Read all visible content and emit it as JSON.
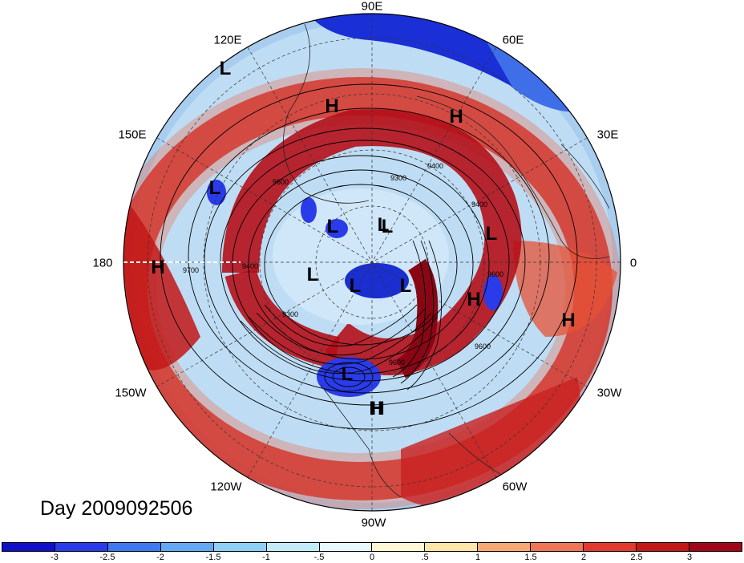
{
  "title": "Day 2009092506",
  "longitude_labels": [
    "90E",
    "60E",
    "30E",
    "0",
    "30W",
    "60W",
    "90W",
    "120W",
    "150W",
    "180",
    "150E",
    "120E"
  ],
  "pressure_centers": [
    "H",
    "L",
    "H",
    "H",
    "L",
    "L",
    "L",
    "L",
    "L",
    "L",
    "L",
    "L",
    "H",
    "H",
    "H",
    "L",
    "H"
  ],
  "contour_labels": [
    "9300",
    "9400",
    "9600",
    "9300",
    "9400",
    "9600",
    "9600",
    "9400",
    "9600",
    "9700"
  ],
  "colorbar": {
    "ticks": [
      "-3",
      "-2.5",
      "-2",
      "-1.5",
      "-1",
      "-.5",
      "0",
      ".5",
      "1",
      "1.5",
      "2",
      "2.5",
      "3"
    ],
    "colors": [
      "#1010c8",
      "#2a3bea",
      "#3f78ef",
      "#62a8f2",
      "#8fd0f7",
      "#c3ecfb",
      "#e8f8fd",
      "#fef8d5",
      "#fde7a8",
      "#f6a973",
      "#ef7557",
      "#e23a2e",
      "#c21818",
      "#a0081a"
    ]
  }
}
